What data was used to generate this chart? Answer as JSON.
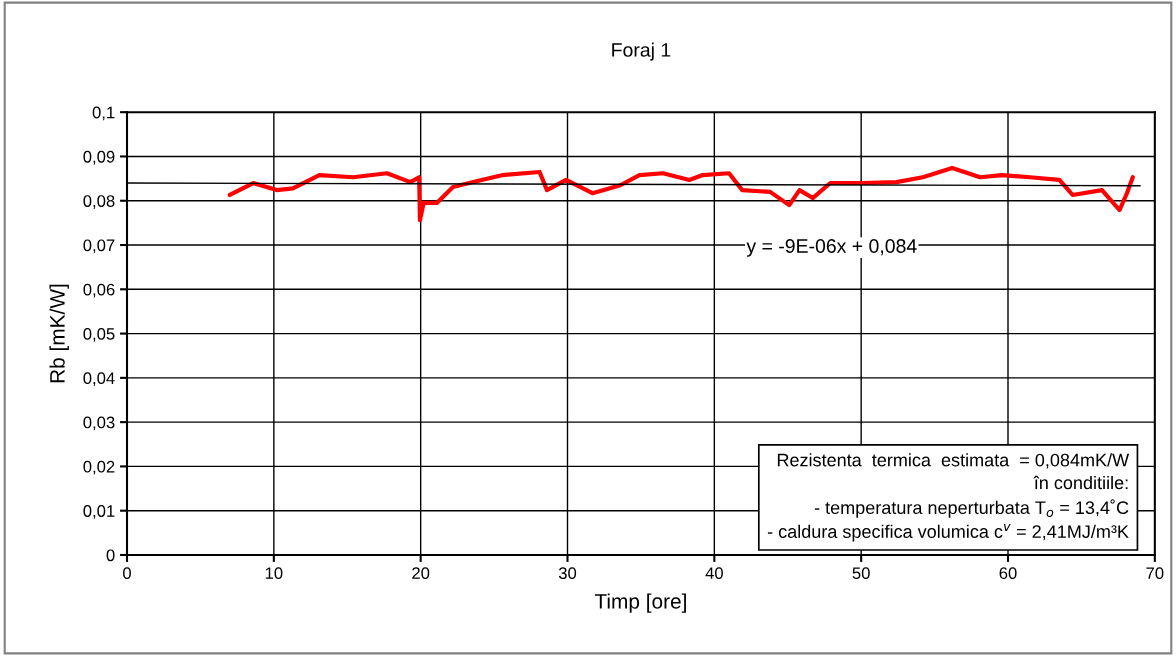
{
  "chart_data": {
    "type": "line",
    "title": "Foraj 1",
    "xlabel": "Timp [ore]",
    "ylabel": "Rb [mK/W]",
    "series": [
      {
        "color": "#ff0000",
        "x": [
          7.0,
          8.6,
          10.2,
          11.3,
          13.1,
          15.4,
          17.7,
          19.3,
          19.9,
          19.95,
          20.2,
          21.1,
          22.2,
          23.3,
          25.6,
          28.1,
          28.6,
          29.9,
          31.7,
          33.6,
          34.9,
          36.5,
          38.3,
          39.2,
          41.0,
          41.9,
          43.8,
          45.1,
          45.8,
          46.7,
          47.9,
          50.1,
          52.4,
          54.2,
          56.2,
          58.1,
          59.6,
          61.5,
          63.5,
          64.4,
          66.4,
          67.6,
          68.1,
          68.5
        ],
        "values": [
          0.0813,
          0.084,
          0.0824,
          0.0828,
          0.0858,
          0.0853,
          0.0862,
          0.0842,
          0.0853,
          0.0756,
          0.0795,
          0.0795,
          0.0831,
          0.084,
          0.0858,
          0.0865,
          0.0824,
          0.0847,
          0.0817,
          0.0835,
          0.0858,
          0.0862,
          0.0847,
          0.0858,
          0.0862,
          0.0824,
          0.082,
          0.079,
          0.0824,
          0.0806,
          0.084,
          0.084,
          0.0842,
          0.0853,
          0.0874,
          0.0853,
          0.0858,
          0.0853,
          0.0847,
          0.0813,
          0.0824,
          0.0779,
          0.0817,
          0.0853
        ]
      },
      {
        "type": "line",
        "color": "#000000",
        "x": [
          0,
          69
        ],
        "values": [
          0.084,
          0.0834
        ]
      }
    ],
    "xlim": [
      0,
      70
    ],
    "xticks": [
      0,
      10,
      20,
      30,
      40,
      50,
      60,
      70
    ],
    "ylim": [
      0,
      0.1
    ],
    "yticks": [
      {
        "value": 0,
        "label": "0"
      },
      {
        "value": 0.01,
        "label": "0,01"
      },
      {
        "value": 0.02,
        "label": "0,02"
      },
      {
        "value": 0.03,
        "label": "0,03"
      },
      {
        "value": 0.04,
        "label": "0,04"
      },
      {
        "value": 0.05,
        "label": "0,05"
      },
      {
        "value": 0.06,
        "label": "0,06"
      },
      {
        "value": 0.07,
        "label": "0,07"
      },
      {
        "value": 0.08,
        "label": "0,08"
      },
      {
        "value": 0.09,
        "label": "0,09"
      },
      {
        "value": 0.1,
        "label": "0,1"
      }
    ],
    "grid": true,
    "legend": false,
    "annotations": [
      {
        "text": "y = -9E-06x + 0,084",
        "x": 48,
        "y": 0.0834
      },
      "Rezistenta  termica  estimata  = 0,084mK/W\nîn conditiile:\n- temperatura neperturbata T$_{o}$ = 13,4˚C\n- caldura specifica volumica c$^{v}$ = 2,41MJ/m³K"
    ]
  }
}
